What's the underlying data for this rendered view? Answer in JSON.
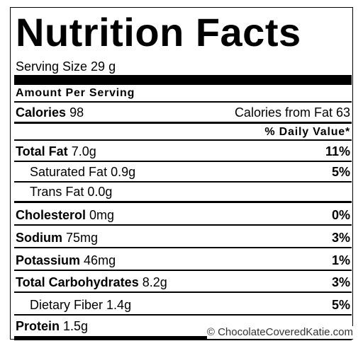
{
  "label": {
    "title": "Nutrition Facts",
    "serving_size": "Serving Size 29 g",
    "amount_per_serving": "Amount Per Serving",
    "calories_label": "Calories",
    "calories_amount": "98",
    "calories_from_fat": "Calories from Fat 63",
    "daily_value_header": "% Daily Value*",
    "rows": [
      {
        "label": "Total Fat",
        "amount": "7.0g",
        "daily_value": "11%"
      },
      {
        "label": "Saturated Fat",
        "amount": "0.9g",
        "daily_value": "5%"
      },
      {
        "label": "Trans Fat",
        "amount": "0.0g"
      },
      {
        "label": "Cholesterol",
        "amount": "0mg",
        "daily_value": "0%"
      },
      {
        "label": "Sodium",
        "amount": "75mg",
        "daily_value": "3%"
      },
      {
        "label": "Potassium",
        "amount": "46mg",
        "daily_value": "1%"
      },
      {
        "label": "Total Carbohydrates",
        "amount": "8.2g",
        "daily_value": "3%"
      },
      {
        "label": "Dietary Fiber",
        "amount": "1.4g",
        "daily_value": "5%"
      },
      {
        "label": "Protein",
        "amount": "1.5g"
      }
    ],
    "watermark": "© ChocolateCoveredKatie.com"
  }
}
